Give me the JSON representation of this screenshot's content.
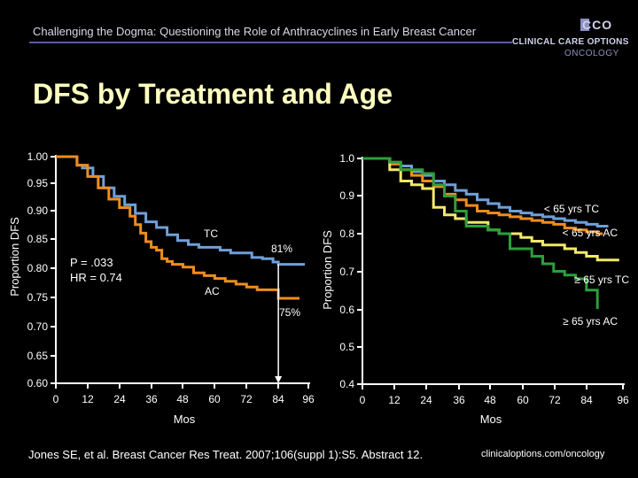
{
  "header": {
    "title": "Challenging the Dogma: Questioning the Role of Anthracyclines in Early Breast Cancer",
    "logo_mark": "CCO",
    "logo_line1": "CLINICAL CARE OPTIONS",
    "logo_line2": "ONCOLOGY"
  },
  "slide_title": "DFS by Treatment and Age",
  "colors": {
    "tc": "#6f9fd8",
    "ac": "#ee8d1e",
    "young_tc": "#6f9fd8",
    "young_ac": "#ee8d1e",
    "old_tc": "#f2e86a",
    "old_ac": "#2e9e3c",
    "title": "#ffffc0",
    "rule": "#5a5aa8"
  },
  "chart_data": [
    {
      "type": "line",
      "ylabel": "Proportion DFS",
      "xlabel": "Mos",
      "x_ticks": [
        0,
        12,
        24,
        36,
        48,
        60,
        72,
        84,
        96
      ],
      "y_ticks": [
        "0.60",
        "0.65",
        "0.70",
        "0.75",
        "0.80",
        "0.85",
        "0.90",
        "0.95",
        "1.00"
      ],
      "xlim": [
        0,
        96
      ],
      "ylim": [
        0.6,
        1.0
      ],
      "annotations": {
        "stats_p": "P = .033",
        "stats_hr": "HR = 0.74",
        "tc_label": "TC",
        "ac_label": "AC",
        "tc_end": "81%",
        "ac_end": "75%",
        "marker_x": 84
      },
      "series": [
        {
          "name": "TC",
          "color_key": "tc",
          "x": [
            0,
            6,
            8,
            10,
            14,
            18,
            22,
            26,
            30,
            34,
            38,
            42,
            46,
            50,
            54,
            58,
            62,
            66,
            70,
            74,
            78,
            82,
            84,
            86,
            88,
            90,
            92,
            94
          ],
          "y": [
            1.0,
            1.0,
            0.985,
            0.98,
            0.965,
            0.945,
            0.93,
            0.915,
            0.9,
            0.885,
            0.875,
            0.862,
            0.852,
            0.845,
            0.84,
            0.84,
            0.835,
            0.83,
            0.83,
            0.822,
            0.82,
            0.814,
            0.81,
            0.81,
            0.81,
            0.81,
            0.81,
            0.81
          ]
        },
        {
          "name": "AC",
          "color_key": "ac",
          "x": [
            0,
            6,
            8,
            12,
            16,
            20,
            24,
            28,
            30,
            32,
            34,
            36,
            38,
            40,
            42,
            44,
            48,
            52,
            56,
            60,
            64,
            68,
            72,
            76,
            80,
            84,
            86,
            88,
            90,
            92
          ],
          "y": [
            1.0,
            1.0,
            0.985,
            0.965,
            0.945,
            0.925,
            0.91,
            0.895,
            0.88,
            0.865,
            0.85,
            0.84,
            0.835,
            0.82,
            0.815,
            0.81,
            0.805,
            0.795,
            0.79,
            0.785,
            0.78,
            0.775,
            0.77,
            0.765,
            0.765,
            0.75,
            0.75,
            0.75,
            0.75,
            0.75
          ]
        }
      ]
    },
    {
      "type": "line",
      "ylabel": "Proportion DFS",
      "xlabel": "Mos",
      "x_ticks": [
        0,
        12,
        24,
        36,
        48,
        60,
        72,
        84,
        96
      ],
      "y_ticks": [
        "0.4",
        "0.5",
        "0.6",
        "0.7",
        "0.8",
        "0.9",
        "1.0"
      ],
      "xlim": [
        0,
        96
      ],
      "ylim": [
        0.4,
        1.0
      ],
      "legend": [
        "< 65 yrs TC",
        "< 65 yrs AC",
        "≥ 65 yrs TC",
        "≥ 65 yrs AC"
      ],
      "series": [
        {
          "name": "< 65 yrs TC",
          "color_key": "young_tc",
          "x": [
            0,
            6,
            10,
            14,
            18,
            22,
            26,
            30,
            34,
            38,
            42,
            46,
            50,
            54,
            58,
            62,
            66,
            70,
            74,
            78,
            82,
            86,
            90
          ],
          "y": [
            1.0,
            1.0,
            0.99,
            0.98,
            0.965,
            0.955,
            0.94,
            0.93,
            0.915,
            0.905,
            0.89,
            0.88,
            0.87,
            0.86,
            0.855,
            0.85,
            0.845,
            0.84,
            0.835,
            0.83,
            0.825,
            0.82,
            0.82
          ]
        },
        {
          "name": "< 65 yrs AC",
          "color_key": "young_ac",
          "x": [
            0,
            6,
            10,
            14,
            18,
            22,
            26,
            30,
            34,
            38,
            42,
            46,
            50,
            54,
            58,
            62,
            66,
            70,
            74,
            78,
            82,
            86,
            88
          ],
          "y": [
            1.0,
            1.0,
            0.985,
            0.97,
            0.955,
            0.94,
            0.925,
            0.905,
            0.89,
            0.875,
            0.86,
            0.855,
            0.85,
            0.845,
            0.84,
            0.835,
            0.83,
            0.825,
            0.815,
            0.81,
            0.805,
            0.8,
            0.8
          ]
        },
        {
          "name": "≥ 65 yrs TC",
          "color_key": "old_tc",
          "x": [
            0,
            6,
            10,
            14,
            18,
            22,
            26,
            30,
            34,
            38,
            42,
            46,
            50,
            54,
            58,
            62,
            66,
            70,
            74,
            78,
            82,
            86,
            90,
            94
          ],
          "y": [
            1.0,
            1.0,
            0.97,
            0.94,
            0.93,
            0.92,
            0.87,
            0.85,
            0.84,
            0.83,
            0.83,
            0.81,
            0.8,
            0.8,
            0.79,
            0.78,
            0.77,
            0.77,
            0.76,
            0.75,
            0.74,
            0.73,
            0.73,
            0.73
          ]
        },
        {
          "name": "≥ 65 yrs AC",
          "color_key": "old_ac",
          "x": [
            0,
            6,
            10,
            14,
            18,
            22,
            26,
            30,
            34,
            38,
            42,
            46,
            50,
            54,
            58,
            62,
            66,
            70,
            74,
            78,
            82,
            86
          ],
          "y": [
            1.0,
            1.0,
            0.99,
            0.97,
            0.97,
            0.96,
            0.93,
            0.9,
            0.86,
            0.82,
            0.82,
            0.81,
            0.8,
            0.76,
            0.76,
            0.74,
            0.72,
            0.7,
            0.69,
            0.68,
            0.65,
            0.6
          ]
        }
      ]
    }
  ],
  "footer": {
    "citation": "Jones SE, et al. Breast Cancer Res Treat. 2007;106(suppl 1):S5. Abstract 12.",
    "link": "clinicaloptions.com/oncology"
  }
}
